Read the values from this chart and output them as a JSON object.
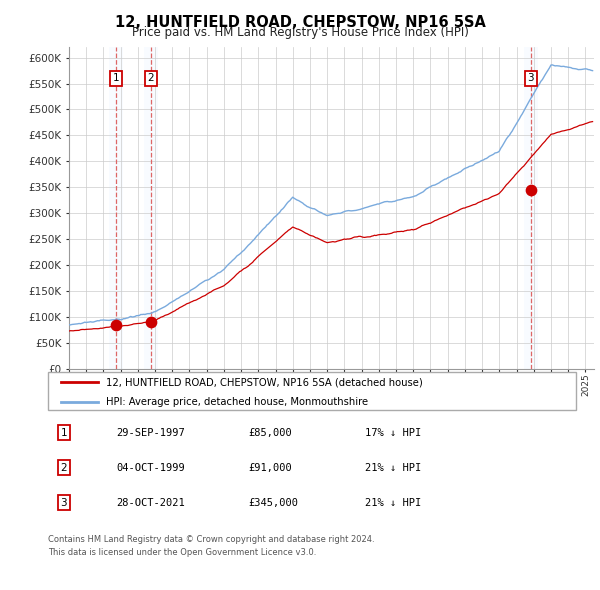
{
  "title": "12, HUNTFIELD ROAD, CHEPSTOW, NP16 5SA",
  "subtitle": "Price paid vs. HM Land Registry's House Price Index (HPI)",
  "ylabel_ticks": [
    "£0",
    "£50K",
    "£100K",
    "£150K",
    "£200K",
    "£250K",
    "£300K",
    "£350K",
    "£400K",
    "£450K",
    "£500K",
    "£550K",
    "£600K"
  ],
  "ytick_values": [
    0,
    50000,
    100000,
    150000,
    200000,
    250000,
    300000,
    350000,
    400000,
    450000,
    500000,
    550000,
    600000
  ],
  "xlim_start": 1995.0,
  "xlim_end": 2025.5,
  "ylim_min": 0,
  "ylim_max": 620000,
  "sale_dates": [
    1997.747,
    1999.756,
    2021.827
  ],
  "sale_prices": [
    85000,
    91000,
    345000
  ],
  "sale_labels": [
    "1",
    "2",
    "3"
  ],
  "legend_line1": "12, HUNTFIELD ROAD, CHEPSTOW, NP16 5SA (detached house)",
  "legend_line2": "HPI: Average price, detached house, Monmouthshire",
  "table_rows": [
    [
      "1",
      "29-SEP-1997",
      "£85,000",
      "17% ↓ HPI"
    ],
    [
      "2",
      "04-OCT-1999",
      "£91,000",
      "21% ↓ HPI"
    ],
    [
      "3",
      "28-OCT-2021",
      "£345,000",
      "21% ↓ HPI"
    ]
  ],
  "footnote1": "Contains HM Land Registry data © Crown copyright and database right 2024.",
  "footnote2": "This data is licensed under the Open Government Licence v3.0.",
  "house_color": "#cc0000",
  "hpi_color": "#7aaadd",
  "vline_color": "#dd6666",
  "shade_color": "#ddeeff",
  "grid_color": "#cccccc",
  "box_color": "#cc0000"
}
